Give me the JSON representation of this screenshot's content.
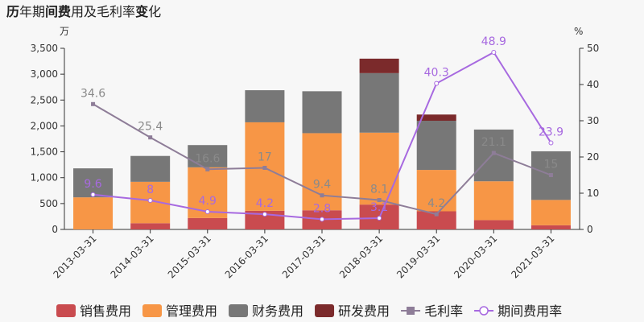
{
  "chart_data": {
    "type": "bar",
    "title_parts": [
      {
        "text": "历",
        "bold": true
      },
      {
        "text": "年期",
        "bold": false
      },
      {
        "text": "间费",
        "bold": true
      },
      {
        "text": "用及毛利率",
        "bold": false
      },
      {
        "text": "变",
        "bold": true
      },
      {
        "text": "化",
        "bold": false
      }
    ],
    "left_unit": "万",
    "right_unit": "%",
    "categories": [
      "2013-03-31",
      "2014-03-31",
      "2015-03-31",
      "2016-03-31",
      "2017-03-31",
      "2018-03-31",
      "2019-03-31",
      "2020-03-31",
      "2021-03-31"
    ],
    "ylim_left": [
      0,
      3500
    ],
    "yticks_left": [
      0,
      500,
      1000,
      1500,
      2000,
      2500,
      3000,
      3500
    ],
    "ytick_labels_left": [
      "0",
      "500",
      "1,000",
      "1,500",
      "2,000",
      "2,500",
      "3,000",
      "3,500"
    ],
    "ylim_right": [
      0,
      50
    ],
    "yticks_right": [
      0,
      10,
      20,
      30,
      40,
      50
    ],
    "ytick_labels_right": [
      "0",
      "10",
      "20",
      "30",
      "40",
      "50"
    ],
    "bar_series": [
      {
        "name": "销售费用",
        "color": "#c94b4f",
        "values": [
          0,
          120,
          220,
          360,
          370,
          480,
          350,
          180,
          80
        ]
      },
      {
        "name": "管理费用",
        "color": "#f79646",
        "values": [
          620,
          800,
          980,
          1710,
          1490,
          1390,
          800,
          750,
          490
        ]
      },
      {
        "name": "财务费用",
        "color": "#777777",
        "values": [
          560,
          500,
          430,
          620,
          810,
          1150,
          950,
          1000,
          940
        ]
      },
      {
        "name": "研发费用",
        "color": "#7b2a2b",
        "values": [
          0,
          0,
          0,
          0,
          0,
          280,
          120,
          0,
          0
        ]
      }
    ],
    "line_series": [
      {
        "name": "毛利率",
        "color": "#8e7d98",
        "marker": "square",
        "values": [
          34.6,
          25.4,
          16.6,
          17,
          9.4,
          8.1,
          4.2,
          21.1,
          15
        ],
        "labels": [
          "34.6",
          "25.4",
          "16.6",
          "17",
          "9.4",
          "8.1",
          "4.2",
          "21.1",
          "15"
        ]
      },
      {
        "name": "期间费用率",
        "color": "#a769e0",
        "marker": "circle",
        "values": [
          9.6,
          8,
          4.9,
          4.2,
          2.8,
          3.1,
          40.3,
          48.9,
          23.9
        ],
        "labels": [
          "9.6",
          "8",
          "4.9",
          "4.2",
          "2.8",
          "3.1",
          "40.3",
          "48.9",
          "23.9"
        ]
      }
    ],
    "legend_position": "bottom"
  }
}
